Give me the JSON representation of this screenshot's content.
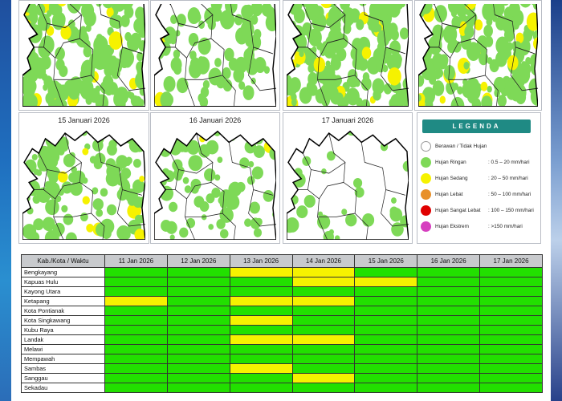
{
  "colors": {
    "no_rain": "#ffffff",
    "light": "#7ed957",
    "moderate": "#f6f200",
    "heavy": "#e8902a",
    "very_heavy": "#e00000",
    "extreme": "#d63fbf",
    "table_green": "#22e000",
    "table_yellow": "#f6f200",
    "legend_header": "#1f8a84"
  },
  "maps": [
    {
      "title": "",
      "coverage": 0.85
    },
    {
      "title": "",
      "coverage": 0.3
    },
    {
      "title": "",
      "coverage": 0.75
    },
    {
      "title": "",
      "coverage": 0.7
    },
    {
      "title": "15 Januari 2026",
      "coverage": 0.45
    },
    {
      "title": "16 Januari 2026",
      "coverage": 0.25
    },
    {
      "title": "17 Januari 2026",
      "coverage": 0.08
    }
  ],
  "legend": {
    "title": "LEGENDA",
    "items": [
      {
        "label": "Berawan / Tidak Hujan",
        "range": "",
        "color_key": "no_rain"
      },
      {
        "label": "Hujan Ringan",
        "range": ": 0.5 – 20 mm/hari",
        "color_key": "light"
      },
      {
        "label": "Hujan Sedang",
        "range": ": 20 – 50 mm/hari",
        "color_key": "moderate"
      },
      {
        "label": "Hujan Lebat",
        "range": ": 50 – 100 mm/hari",
        "color_key": "heavy"
      },
      {
        "label": "Hujan Sangat Lebat",
        "range": ": 100 – 150 mm/hari",
        "color_key": "very_heavy"
      },
      {
        "label": "Hujan Ekstrem",
        "range": ": >150 mm/hari",
        "color_key": "extreme"
      }
    ]
  },
  "table": {
    "header_first": "Kab./Kota / Waktu",
    "dates": [
      "11 Jan 2026",
      "12 Jan 2026",
      "13 Jan 2026",
      "14 Jan 2026",
      "15 Jan 2026",
      "16 Jan 2026",
      "17 Jan 2026"
    ],
    "rows": [
      {
        "name": "Bengkayang",
        "cells": [
          "g",
          "g",
          "y",
          "y",
          "g",
          "g",
          "g"
        ]
      },
      {
        "name": "Kapuas Hulu",
        "cells": [
          "g",
          "g",
          "g",
          "y",
          "y",
          "g",
          "g"
        ]
      },
      {
        "name": "Kayong Utara",
        "cells": [
          "g",
          "g",
          "g",
          "g",
          "g",
          "g",
          "g"
        ]
      },
      {
        "name": "Ketapang",
        "cells": [
          "y",
          "g",
          "y",
          "y",
          "g",
          "g",
          "g"
        ]
      },
      {
        "name": "Kota Pontianak",
        "cells": [
          "g",
          "g",
          "g",
          "g",
          "g",
          "g",
          "g"
        ]
      },
      {
        "name": "Kota Singkawang",
        "cells": [
          "g",
          "g",
          "y",
          "g",
          "g",
          "g",
          "g"
        ]
      },
      {
        "name": "Kubu Raya",
        "cells": [
          "g",
          "g",
          "g",
          "g",
          "g",
          "g",
          "g"
        ]
      },
      {
        "name": "Landak",
        "cells": [
          "g",
          "g",
          "y",
          "y",
          "g",
          "g",
          "g"
        ]
      },
      {
        "name": "Melawi",
        "cells": [
          "g",
          "g",
          "g",
          "g",
          "g",
          "g",
          "g"
        ]
      },
      {
        "name": "Mempawah",
        "cells": [
          "g",
          "g",
          "g",
          "g",
          "g",
          "g",
          "g"
        ]
      },
      {
        "name": "Sambas",
        "cells": [
          "g",
          "g",
          "y",
          "g",
          "g",
          "g",
          "g"
        ]
      },
      {
        "name": "Sanggau",
        "cells": [
          "g",
          "g",
          "g",
          "y",
          "g",
          "g",
          "g"
        ]
      },
      {
        "name": "Sekadau",
        "cells": [
          "g",
          "g",
          "g",
          "g",
          "g",
          "g",
          "g"
        ]
      }
    ]
  }
}
